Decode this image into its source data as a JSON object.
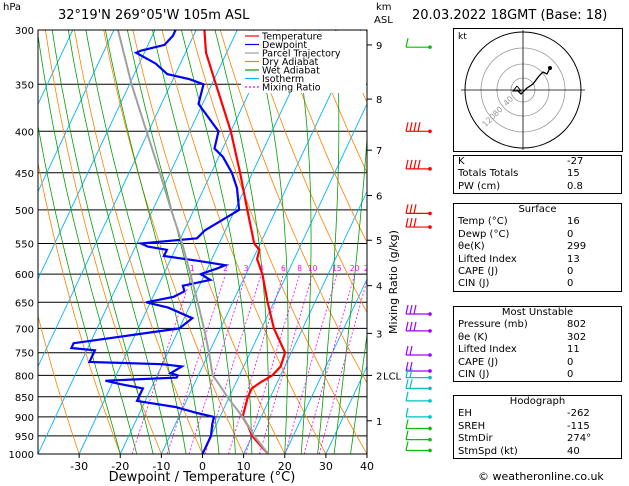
{
  "header": {
    "left_unit": "hPa",
    "location": "32°19'N  269°05'W  105m  ASL",
    "km_label": "km",
    "asl_label": "ASL",
    "datetime": "20.03.2022  18GMT  (Base: 18)"
  },
  "chart_data": {
    "type": "skew-t",
    "xlabel": "Dewpoint / Temperature (°C)",
    "ylabel_right": "Mixing Ratio (g/kg)",
    "pressure_levels": [
      300,
      350,
      400,
      450,
      500,
      550,
      600,
      650,
      700,
      750,
      800,
      850,
      900,
      950,
      1000
    ],
    "x_ticks": [
      -30,
      -20,
      -10,
      0,
      10,
      20,
      30,
      40
    ],
    "xlim": [
      -40,
      40
    ],
    "km_ticks": [
      {
        "km": "1",
        "p": 910
      },
      {
        "km": "2",
        "p": 800
      },
      {
        "km": "3",
        "p": 710
      },
      {
        "km": "4",
        "p": 620
      },
      {
        "km": "5",
        "p": 545
      },
      {
        "km": "6",
        "p": 480
      },
      {
        "km": "7",
        "p": 422
      },
      {
        "km": "8",
        "p": 365
      },
      {
        "km": "9",
        "p": 313
      }
    ],
    "lcl_label": "LCL",
    "lcl_p": 800,
    "mixing_ratio_labels": [
      "1",
      "2",
      "3",
      "4",
      "6",
      "8",
      "10",
      "15",
      "20",
      "25"
    ],
    "legend": [
      {
        "name": "Temperature",
        "color": "#ff0000",
        "dash": ""
      },
      {
        "name": "Dewpoint",
        "color": "#0000ff",
        "dash": ""
      },
      {
        "name": "Parcel Trajectory",
        "color": "#a0a0a0",
        "dash": ""
      },
      {
        "name": "Dry Adiabat",
        "color": "#ff8000",
        "dash": ""
      },
      {
        "name": "Wet Adiabat",
        "color": "#00a000",
        "dash": ""
      },
      {
        "name": "Isotherm",
        "color": "#00b4ff",
        "dash": ""
      },
      {
        "name": "Mixing Ratio",
        "color": "#ff00ff",
        "dash": "2,2"
      }
    ],
    "series": [
      {
        "name": "Temperature",
        "color": "#ff0000",
        "points": [
          [
            1000,
            16
          ],
          [
            975,
            13
          ],
          [
            950,
            10
          ],
          [
            925,
            8
          ],
          [
            900,
            5.5
          ],
          [
            875,
            5
          ],
          [
            850,
            4.5
          ],
          [
            830,
            4.5
          ],
          [
            815,
            6
          ],
          [
            800,
            8
          ],
          [
            780,
            9
          ],
          [
            750,
            8.5
          ],
          [
            700,
            3
          ],
          [
            650,
            -1.5
          ],
          [
            600,
            -6
          ],
          [
            575,
            -9
          ],
          [
            560,
            -9.5
          ],
          [
            550,
            -11.5
          ],
          [
            500,
            -17
          ],
          [
            450,
            -23
          ],
          [
            400,
            -30
          ],
          [
            350,
            -39
          ],
          [
            320,
            -45
          ],
          [
            300,
            -48
          ]
        ]
      },
      {
        "name": "Dewpoint",
        "color": "#0000ff",
        "points": [
          [
            1000,
            0
          ],
          [
            950,
            0
          ],
          [
            920,
            -1
          ],
          [
            900,
            -1.5
          ],
          [
            890,
            -6
          ],
          [
            875,
            -12
          ],
          [
            860,
            -22
          ],
          [
            850,
            -22
          ],
          [
            830,
            -22
          ],
          [
            820,
            -28
          ],
          [
            812,
            -32
          ],
          [
            805,
            -15
          ],
          [
            800,
            -15
          ],
          [
            795,
            -17
          ],
          [
            780,
            -15
          ],
          [
            775,
            -20
          ],
          [
            770,
            -38
          ],
          [
            755,
            -38
          ],
          [
            745,
            -38
          ],
          [
            740,
            -44
          ],
          [
            730,
            -44
          ],
          [
            700,
            -20
          ],
          [
            680,
            -18
          ],
          [
            660,
            -25
          ],
          [
            650,
            -31
          ],
          [
            640,
            -25
          ],
          [
            630,
            -23
          ],
          [
            620,
            -24
          ],
          [
            610,
            -18
          ],
          [
            600,
            -21
          ],
          [
            590,
            -17.5
          ],
          [
            585,
            -16
          ],
          [
            578,
            -23
          ],
          [
            570,
            -32
          ],
          [
            560,
            -32
          ],
          [
            555,
            -37
          ],
          [
            550,
            -39
          ],
          [
            542,
            -26
          ],
          [
            530,
            -25
          ],
          [
            500,
            -19
          ],
          [
            470,
            -22
          ],
          [
            450,
            -25
          ],
          [
            430,
            -29
          ],
          [
            420,
            -32
          ],
          [
            400,
            -33
          ],
          [
            370,
            -41
          ],
          [
            350,
            -42
          ],
          [
            345,
            -46
          ],
          [
            340,
            -52
          ],
          [
            330,
            -56
          ],
          [
            320,
            -62
          ],
          [
            318,
            -61
          ],
          [
            313,
            -56
          ],
          [
            305,
            -55
          ],
          [
            300,
            -55
          ]
        ]
      },
      {
        "name": "Parcel Trajectory",
        "color": "#a0a0a0",
        "points": [
          [
            1000,
            16
          ],
          [
            950,
            10.5
          ],
          [
            900,
            5.5
          ],
          [
            850,
            -0.5
          ],
          [
            820,
            -4
          ],
          [
            800,
            -6.5
          ],
          [
            750,
            -10
          ],
          [
            700,
            -14
          ],
          [
            650,
            -18.5
          ],
          [
            600,
            -23.5
          ],
          [
            550,
            -29
          ],
          [
            500,
            -35.5
          ],
          [
            450,
            -42.5
          ],
          [
            400,
            -50.5
          ],
          [
            350,
            -59.5
          ],
          [
            300,
            -69
          ]
        ]
      }
    ],
    "hodograph": {
      "label": "kt",
      "ring_labels": [
        "120",
        "80",
        "40"
      ]
    }
  },
  "stats": [
    {
      "label": "K",
      "value": "-27"
    },
    {
      "label": "Totals Totals",
      "value": "15"
    },
    {
      "label": "PW (cm)",
      "value": "0.8"
    }
  ],
  "surface": {
    "title": "Surface",
    "rows": [
      {
        "label": "Temp (°C)",
        "value": "16"
      },
      {
        "label": "Dewp (°C)",
        "value": "0"
      },
      {
        "label": "θe(K)",
        "value": "299"
      },
      {
        "label": "Lifted Index",
        "value": "13"
      },
      {
        "label": "CAPE (J)",
        "value": "0"
      },
      {
        "label": "CIN (J)",
        "value": "0"
      }
    ]
  },
  "unstable": {
    "title": "Most Unstable",
    "rows": [
      {
        "label": "Pressure (mb)",
        "value": "802"
      },
      {
        "label": "θe (K)",
        "value": "302"
      },
      {
        "label": "Lifted Index",
        "value": "11"
      },
      {
        "label": "CAPE (J)",
        "value": "0"
      },
      {
        "label": "CIN (J)",
        "value": "0"
      }
    ]
  },
  "hodo_table": {
    "title": "Hodograph",
    "rows": [
      {
        "label": "EH",
        "value": "-262"
      },
      {
        "label": "SREH",
        "value": "-115"
      },
      {
        "label": "StmDir",
        "value": "274°"
      },
      {
        "label": "StmSpd (kt)",
        "value": "40"
      }
    ]
  },
  "footer": "© weatheronline.co.uk",
  "colors": {
    "temperature": "#ff0000",
    "dewpoint": "#0000ff",
    "parcel": "#a0a0a0",
    "dry_adiabat": "#ff8000",
    "wet_adiabat": "#00a000",
    "isotherm": "#00b4ff",
    "mixing_ratio": "#ff00ff",
    "wind_upper": "#ff0000",
    "wind_mid": "#a000ff",
    "wind_low": "#00c0c0",
    "wind_sfc": "#00c000"
  }
}
